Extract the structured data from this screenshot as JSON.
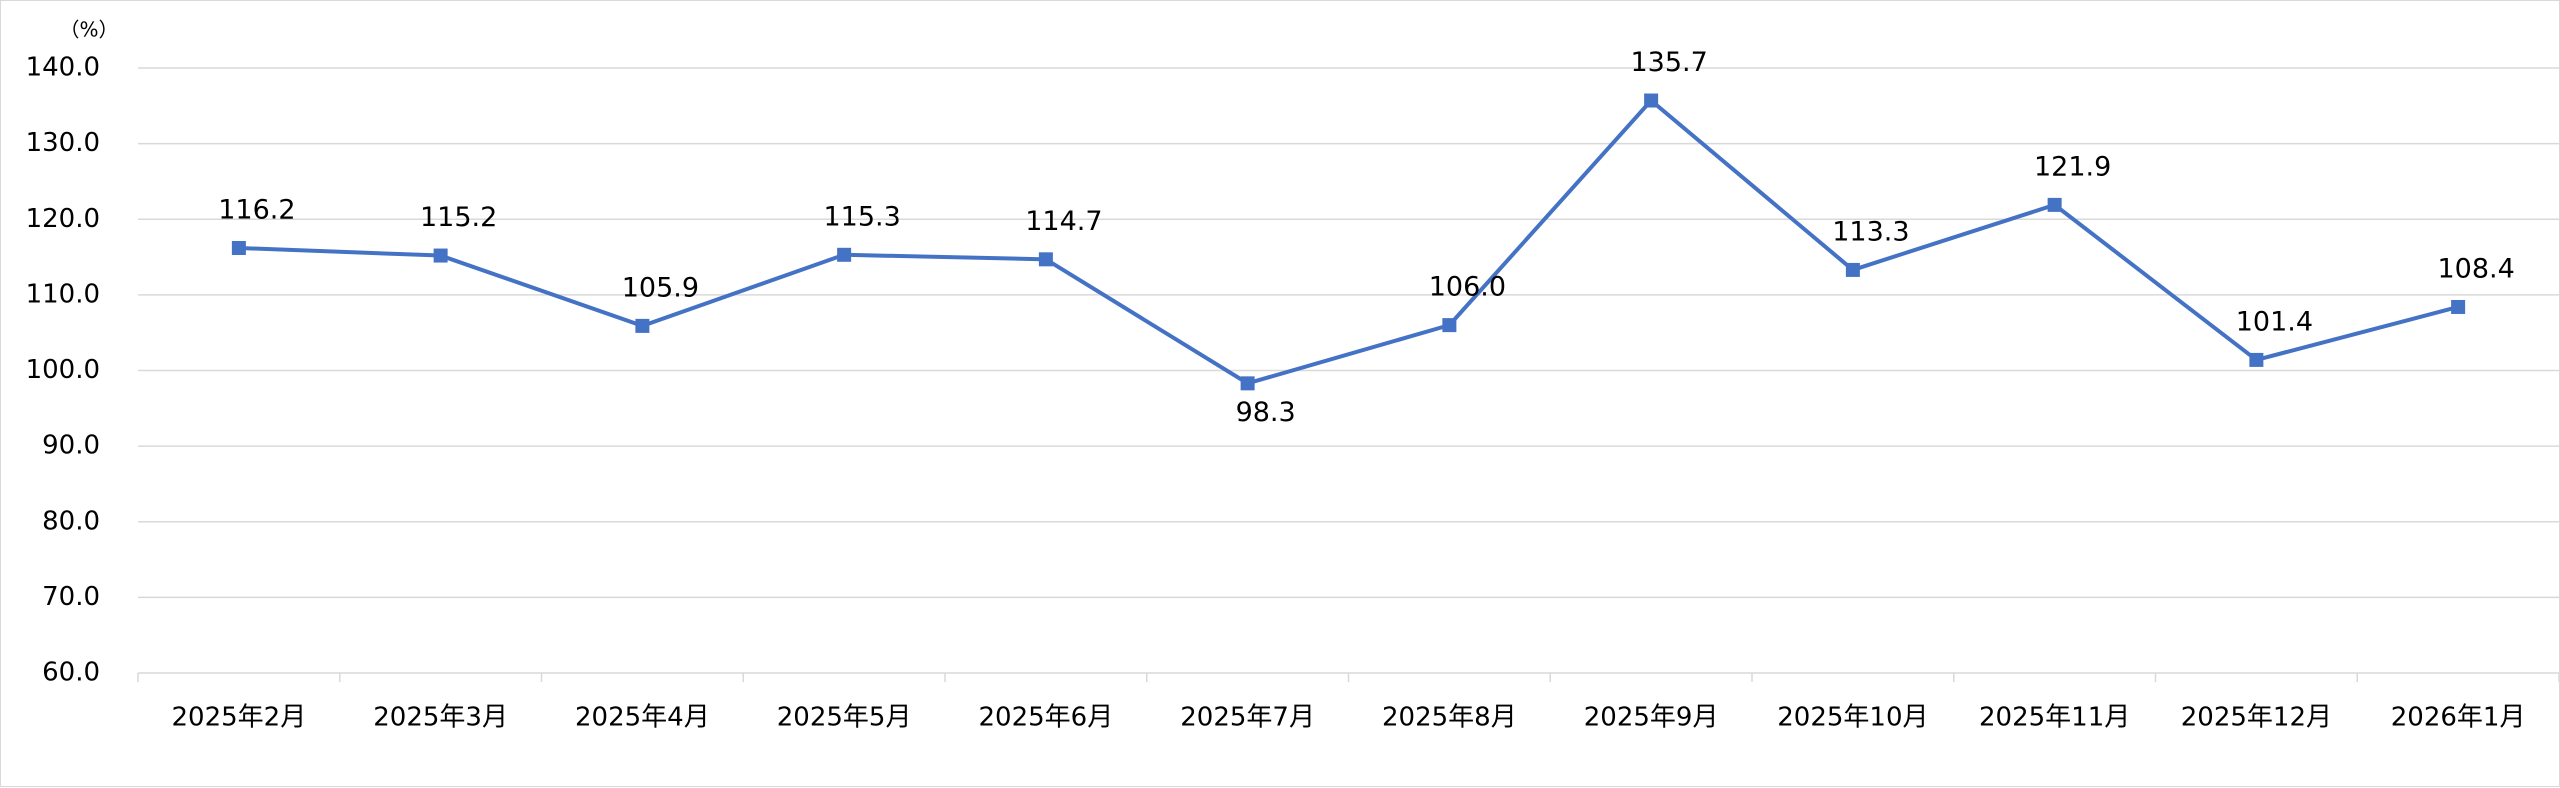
{
  "chart_data": {
    "type": "line",
    "title": "",
    "unit_label": "（%）",
    "xlabel": "",
    "ylabel": "",
    "categories": [
      "2025年2月",
      "2025年3月",
      "2025年4月",
      "2025年5月",
      "2025年6月",
      "2025年7月",
      "2025年8月",
      "2025年9月",
      "2025年10月",
      "2025年11月",
      "2025年12月",
      "2026年1月"
    ],
    "series": [
      {
        "values": [
          116.2,
          115.2,
          105.9,
          115.3,
          114.7,
          98.3,
          106.0,
          135.7,
          113.3,
          121.9,
          101.4,
          108.4
        ],
        "labels": [
          "116.2",
          "115.2",
          "105.9",
          "115.3",
          "114.7",
          "98.3",
          "106.0",
          "135.7",
          "113.3",
          "121.9",
          "101.4",
          "108.4"
        ],
        "label_positions": [
          "above",
          "above",
          "above",
          "above",
          "above",
          "below",
          "above",
          "above",
          "above",
          "above",
          "above",
          "above"
        ],
        "marker": "square"
      }
    ],
    "ylim": [
      60,
      140
    ],
    "yticks": [
      "60.0",
      "70.0",
      "80.0",
      "90.0",
      "100.0",
      "110.0",
      "120.0",
      "130.0",
      "140.0"
    ],
    "grid": true,
    "legend": "none",
    "colors": {
      "series": "#4472c4",
      "grid": "#d9d9d9"
    }
  }
}
